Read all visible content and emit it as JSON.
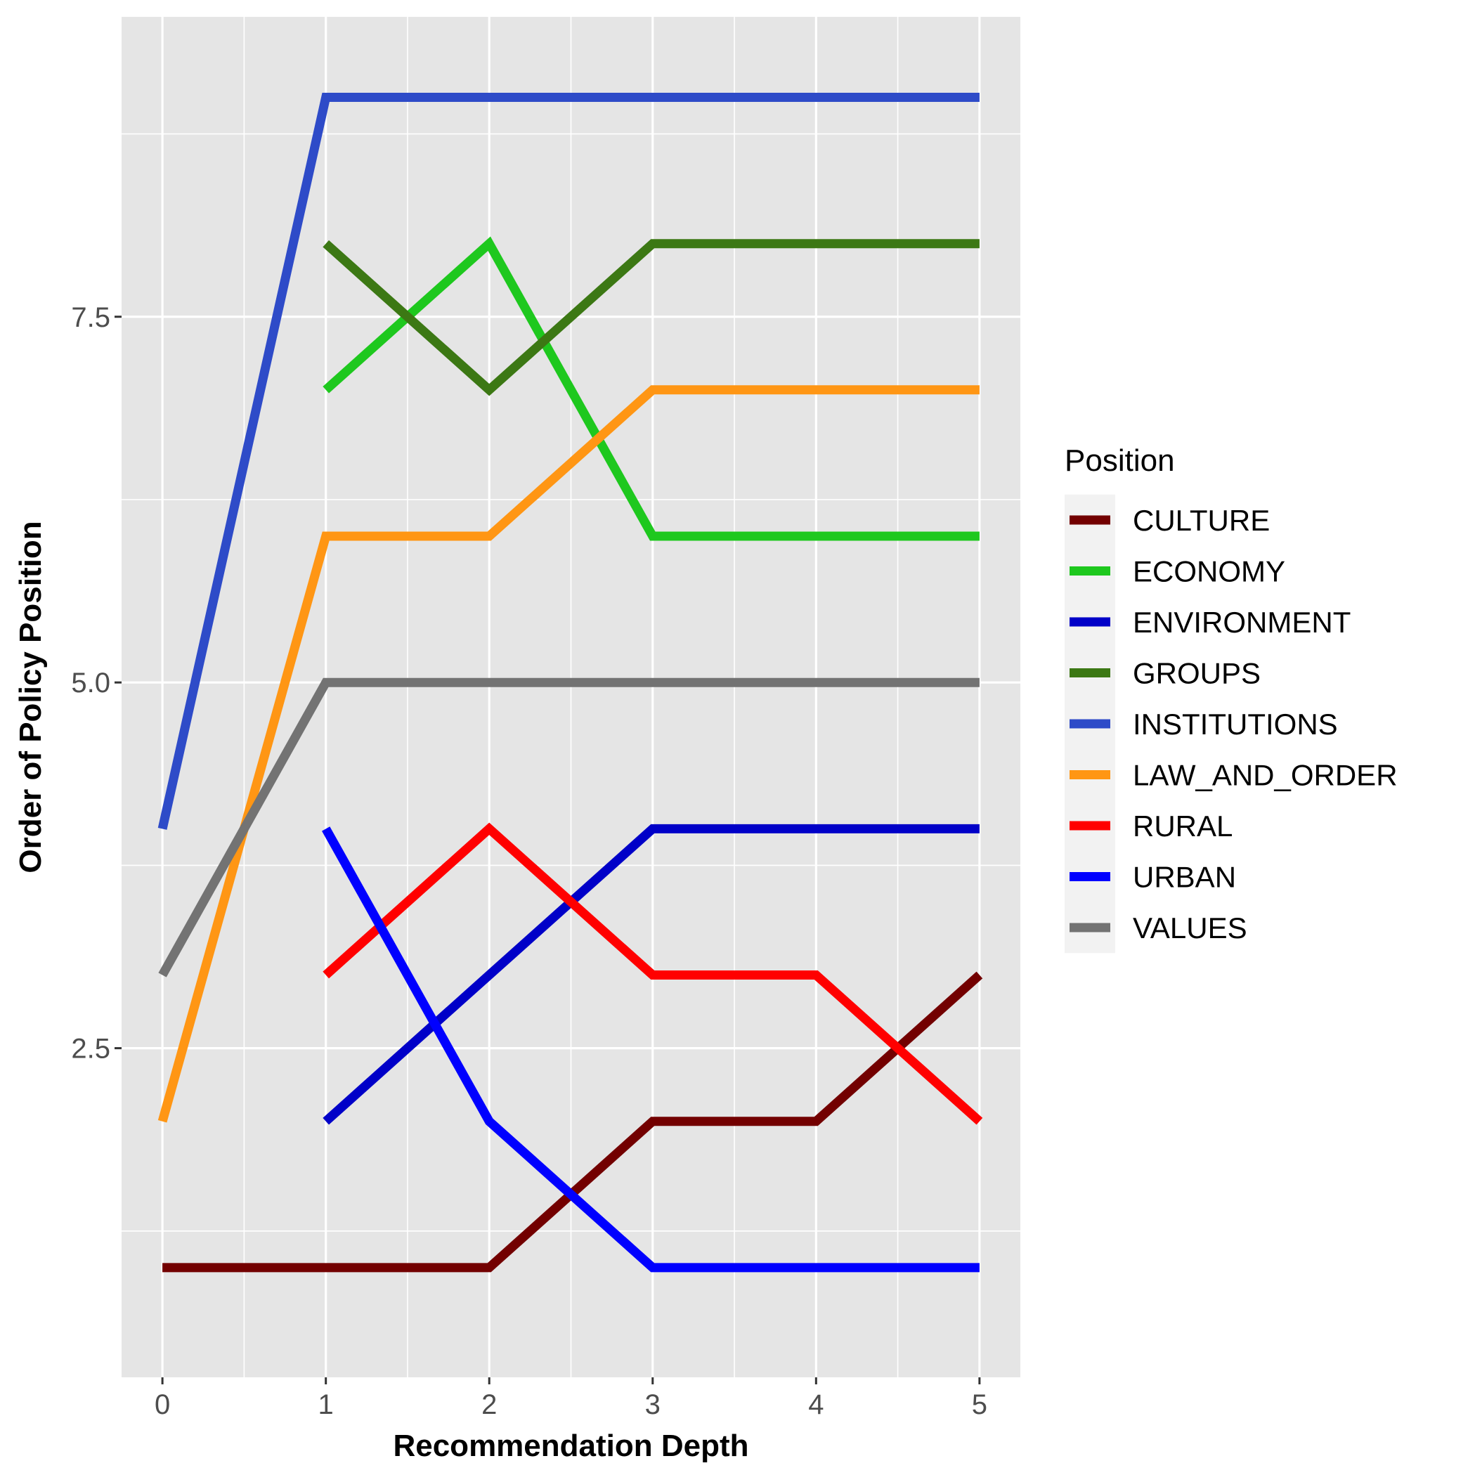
{
  "chart_data": {
    "type": "line",
    "xlabel": "Recommendation Depth",
    "ylabel": "Order of Policy Position",
    "xlim": [
      -0.25,
      5.25
    ],
    "ylim": [
      0.25,
      9.55
    ],
    "x_ticks": [
      0,
      1,
      2,
      3,
      4,
      5
    ],
    "x_tick_labels": [
      "0",
      "1",
      "2",
      "3",
      "4",
      "5"
    ],
    "y_ticks": [
      2.5,
      5.0,
      7.5
    ],
    "y_tick_labels": [
      "2.5",
      "5.0",
      "7.5"
    ],
    "grid": true,
    "legend": {
      "title": "Position",
      "placement": "right"
    },
    "series": [
      {
        "name": "CULTURE",
        "color": "#730000",
        "x": [
          0,
          1,
          2,
          3,
          4,
          5
        ],
        "y": [
          1,
          1,
          1,
          2,
          2,
          3
        ]
      },
      {
        "name": "ECONOMY",
        "color": "#1ec81e",
        "x": [
          1,
          2,
          3,
          4,
          5
        ],
        "y": [
          7,
          8,
          6,
          6,
          6
        ]
      },
      {
        "name": "ENVIRONMENT",
        "color": "#0000c8",
        "x": [
          1,
          2,
          3,
          4,
          5
        ],
        "y": [
          2,
          3,
          4,
          4,
          4
        ]
      },
      {
        "name": "GROUPS",
        "color": "#3c7814",
        "x": [
          1,
          2,
          3,
          4,
          5
        ],
        "y": [
          8,
          7,
          8,
          8,
          8
        ]
      },
      {
        "name": "INSTITUTIONS",
        "color": "#2e4bc8",
        "x": [
          0,
          1,
          2,
          3,
          4,
          5
        ],
        "y": [
          4,
          9,
          9,
          9,
          9,
          9
        ]
      },
      {
        "name": "LAW_AND_ORDER",
        "color": "#ff9614",
        "x": [
          0,
          1,
          2,
          3,
          4,
          5
        ],
        "y": [
          2,
          6,
          6,
          7,
          7,
          7
        ]
      },
      {
        "name": "RURAL",
        "color": "#ff0000",
        "x": [
          1,
          2,
          3,
          4,
          5
        ],
        "y": [
          3,
          4,
          3,
          3,
          2
        ]
      },
      {
        "name": "URBAN",
        "color": "#0000ff",
        "x": [
          1,
          2,
          3,
          4,
          5
        ],
        "y": [
          4,
          2,
          1,
          1,
          1
        ]
      },
      {
        "name": "VALUES",
        "color": "#737373",
        "x": [
          0,
          1,
          2,
          3,
          4,
          5
        ],
        "y": [
          3,
          5,
          5,
          5,
          5,
          5
        ]
      }
    ]
  }
}
